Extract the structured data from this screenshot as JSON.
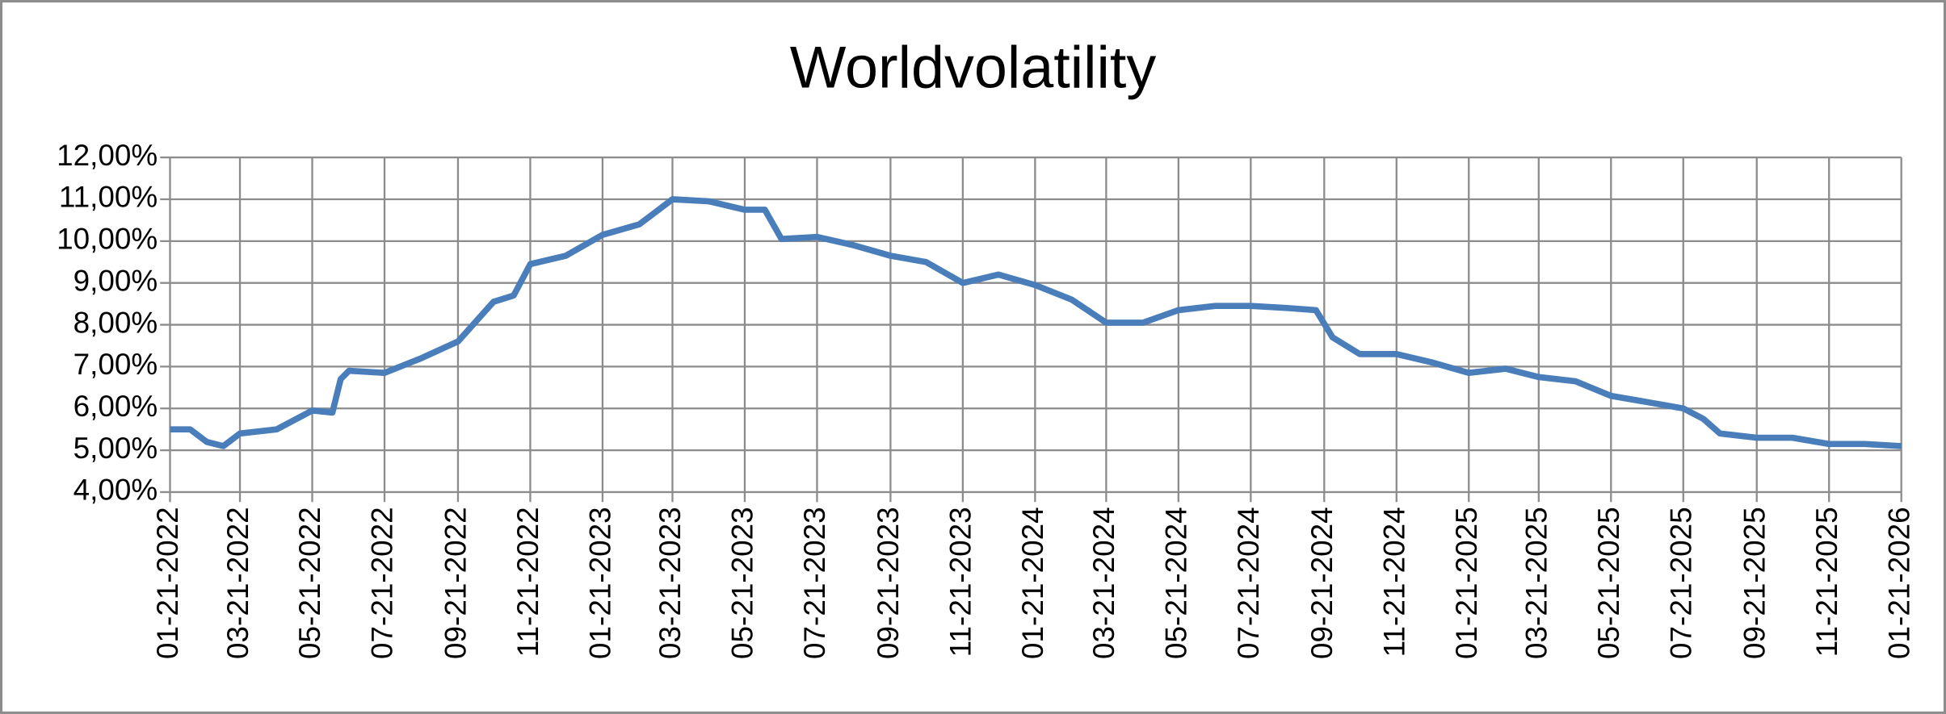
{
  "chart_data": {
    "type": "line",
    "title": "Worldvolatility",
    "x": [
      "01-21-2022",
      "02-07-2022",
      "02-21-2022",
      "03-07-2022",
      "03-21-2022",
      "04-21-2022",
      "05-21-2022",
      "06-07-2022",
      "06-14-2022",
      "06-21-2022",
      "07-21-2022",
      "08-21-2022",
      "09-21-2022",
      "10-21-2022",
      "11-07-2022",
      "11-21-2022",
      "12-21-2022",
      "01-21-2023",
      "02-21-2023",
      "03-21-2023",
      "04-21-2023",
      "05-21-2023",
      "06-07-2023",
      "06-21-2023",
      "07-21-2023",
      "08-21-2023",
      "09-21-2023",
      "10-21-2023",
      "11-21-2023",
      "12-21-2023",
      "01-21-2024",
      "02-21-2024",
      "03-21-2024",
      "04-21-2024",
      "05-21-2024",
      "06-21-2024",
      "07-21-2024",
      "08-21-2024",
      "09-14-2024",
      "09-28-2024",
      "10-21-2024",
      "11-21-2024",
      "12-21-2024",
      "01-21-2025",
      "02-21-2025",
      "03-21-2025",
      "04-21-2025",
      "05-21-2025",
      "06-21-2025",
      "07-21-2025",
      "08-07-2025",
      "08-21-2025",
      "09-21-2025",
      "10-21-2025",
      "11-21-2025",
      "12-21-2025",
      "01-21-2026"
    ],
    "series": [
      {
        "name": "Worldvolatility",
        "color": "#4a7ebb",
        "values": [
          5.5,
          5.5,
          5.2,
          5.1,
          5.4,
          5.5,
          5.95,
          5.9,
          6.7,
          6.9,
          6.85,
          7.2,
          7.6,
          8.55,
          8.7,
          9.45,
          9.65,
          10.15,
          10.4,
          11.0,
          10.95,
          10.75,
          10.75,
          10.05,
          10.1,
          9.9,
          9.65,
          9.5,
          9.0,
          9.2,
          8.95,
          8.6,
          8.05,
          8.05,
          8.35,
          8.45,
          8.45,
          8.4,
          8.35,
          7.7,
          7.3,
          7.3,
          7.1,
          6.85,
          6.95,
          6.75,
          6.65,
          6.3,
          6.15,
          6.0,
          5.75,
          5.4,
          5.3,
          5.3,
          5.15,
          5.15,
          5.1
        ]
      }
    ],
    "xlim": [
      "01-21-2022",
      "01-21-2026"
    ],
    "xticks": [
      "01-21-2022",
      "03-21-2022",
      "05-21-2022",
      "07-21-2022",
      "09-21-2022",
      "11-21-2022",
      "01-21-2023",
      "03-21-2023",
      "05-21-2023",
      "07-21-2023",
      "09-21-2023",
      "11-21-2023",
      "01-21-2024",
      "03-21-2024",
      "05-21-2024",
      "07-21-2024",
      "09-21-2024",
      "11-21-2024",
      "01-21-2025",
      "03-21-2025",
      "05-21-2025",
      "07-21-2025",
      "09-21-2025",
      "11-21-2025",
      "01-21-2026"
    ],
    "ylim": [
      4,
      12
    ],
    "yticks": [
      {
        "value": 4,
        "label": "4,00%"
      },
      {
        "value": 5,
        "label": "5,00%"
      },
      {
        "value": 6,
        "label": "6,00%"
      },
      {
        "value": 7,
        "label": "7,00%"
      },
      {
        "value": 8,
        "label": "8,00%"
      },
      {
        "value": 9,
        "label": "9,00%"
      },
      {
        "value": 10,
        "label": "10,00%"
      },
      {
        "value": 11,
        "label": "11,00%"
      },
      {
        "value": 12,
        "label": "12,00%"
      }
    ],
    "grid": true
  }
}
